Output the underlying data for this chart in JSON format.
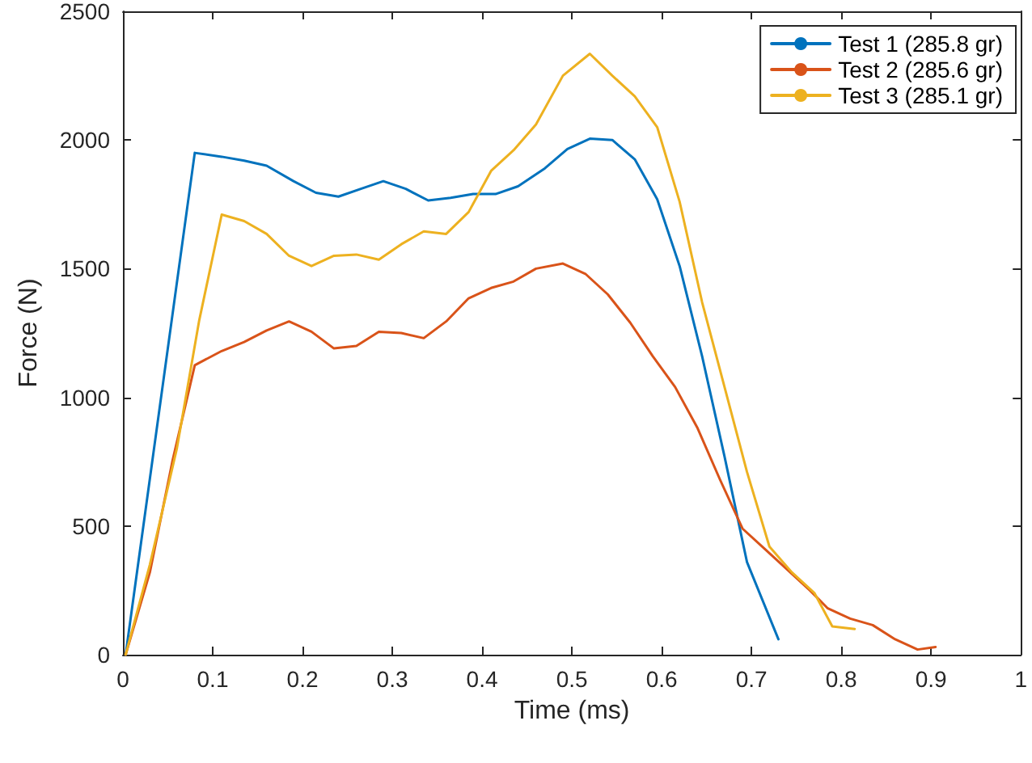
{
  "chart_data": {
    "type": "line",
    "xlabel": "Time (ms)",
    "ylabel": "Force (N)",
    "xlim": [
      0,
      1
    ],
    "xticks": [
      0,
      0.1,
      0.2,
      0.3,
      0.4,
      0.5,
      0.6,
      0.7,
      0.8,
      0.9,
      1
    ],
    "ylim": [
      0,
      2500
    ],
    "yticks": [
      0,
      500,
      1000,
      1500,
      2000,
      2500
    ],
    "grid": false,
    "legend": "top right",
    "marker": "none",
    "line_style": "solid",
    "series": [
      {
        "name": "Test 1 (285.8 gr)",
        "color": "#0072bd",
        "x": [
          0.003,
          0.08,
          0.11,
          0.135,
          0.16,
          0.19,
          0.215,
          0.24,
          0.265,
          0.29,
          0.315,
          0.34,
          0.365,
          0.39,
          0.415,
          0.44,
          0.47,
          0.495,
          0.52,
          0.545,
          0.57,
          0.595,
          0.62,
          0.645,
          0.67,
          0.695,
          0.73
        ],
        "values": [
          0,
          1950,
          1935,
          1920,
          1900,
          1840,
          1795,
          1780,
          1810,
          1840,
          1810,
          1765,
          1775,
          1790,
          1790,
          1820,
          1890,
          1965,
          2005,
          2000,
          1925,
          1770,
          1510,
          1160,
          770,
          360,
          60
        ]
      },
      {
        "name": "Test 2 (285.6 gr)",
        "color": "#d95319",
        "x": [
          0.003,
          0.03,
          0.055,
          0.08,
          0.11,
          0.135,
          0.16,
          0.185,
          0.21,
          0.235,
          0.26,
          0.285,
          0.31,
          0.335,
          0.36,
          0.385,
          0.41,
          0.435,
          0.46,
          0.49,
          0.515,
          0.54,
          0.565,
          0.59,
          0.615,
          0.64,
          0.665,
          0.69,
          0.715,
          0.74,
          0.765,
          0.785,
          0.81,
          0.835,
          0.86,
          0.885,
          0.905
        ],
        "values": [
          0,
          320,
          750,
          1125,
          1180,
          1215,
          1260,
          1295,
          1255,
          1190,
          1200,
          1255,
          1250,
          1230,
          1295,
          1385,
          1425,
          1450,
          1500,
          1520,
          1480,
          1400,
          1290,
          1160,
          1040,
          880,
          680,
          490,
          410,
          330,
          250,
          180,
          140,
          115,
          60,
          20,
          30
        ]
      },
      {
        "name": "Test 3 (285.1 gr)",
        "color": "#edb120",
        "x": [
          0.003,
          0.03,
          0.06,
          0.085,
          0.11,
          0.135,
          0.16,
          0.185,
          0.21,
          0.235,
          0.26,
          0.285,
          0.31,
          0.335,
          0.36,
          0.385,
          0.41,
          0.435,
          0.46,
          0.49,
          0.52,
          0.545,
          0.57,
          0.595,
          0.62,
          0.645,
          0.67,
          0.695,
          0.72,
          0.745,
          0.77,
          0.79,
          0.815
        ],
        "values": [
          0,
          350,
          800,
          1300,
          1710,
          1685,
          1635,
          1550,
          1510,
          1550,
          1555,
          1535,
          1595,
          1645,
          1635,
          1720,
          1880,
          1960,
          2060,
          2250,
          2335,
          2250,
          2170,
          2050,
          1760,
          1370,
          1040,
          710,
          420,
          320,
          240,
          110,
          100
        ]
      }
    ]
  }
}
